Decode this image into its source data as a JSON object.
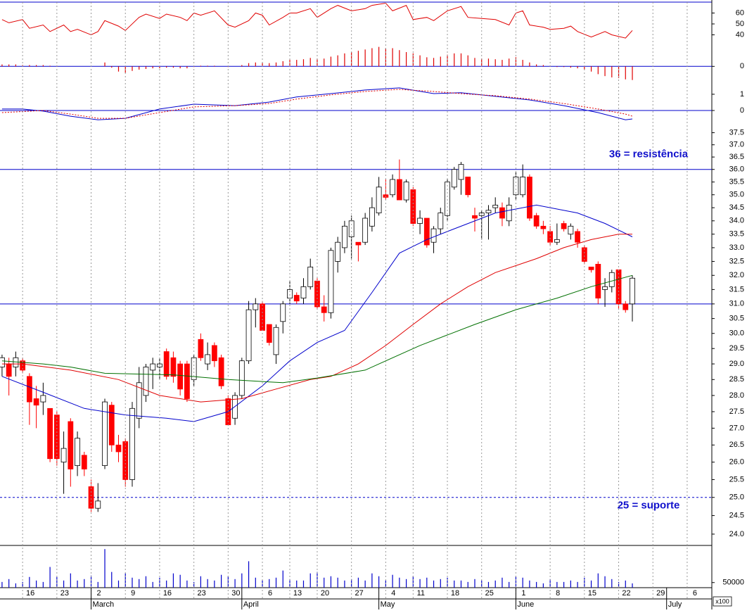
{
  "chart_data": [
    {
      "type": "line",
      "ylim": [
        34.5,
        70
      ],
      "yticks": [
        40,
        50,
        60
      ],
      "xlim": [
        -0.3,
        103.6
      ],
      "series": [
        {
          "color": "#e00000",
          "x": [
            0,
            1,
            3,
            4,
            6,
            7,
            9,
            10,
            11,
            13,
            14,
            15,
            17,
            18,
            20,
            21,
            23,
            24,
            26,
            27,
            28,
            29,
            31,
            33,
            34,
            36,
            37,
            38,
            39,
            41,
            42,
            43,
            45,
            46,
            48,
            49,
            51,
            53,
            54,
            56,
            57,
            59,
            60,
            62,
            63,
            65,
            67,
            68,
            70,
            72,
            74,
            75,
            76,
            77,
            79,
            80,
            82,
            83,
            84,
            86,
            88,
            89,
            91,
            92
          ],
          "values": [
            54,
            51,
            54,
            46,
            49,
            43,
            49,
            43,
            45,
            40,
            43,
            53,
            48,
            44,
            56,
            59,
            55,
            59,
            56,
            53,
            60,
            58,
            62,
            49,
            47,
            53,
            60,
            58,
            49,
            56,
            60,
            60,
            64,
            56,
            64,
            67,
            62,
            64,
            67,
            69,
            62,
            67,
            54,
            56,
            53,
            62,
            66,
            56,
            55,
            54,
            49,
            60,
            62,
            49,
            47,
            45,
            46,
            48,
            43,
            38,
            43,
            40,
            37,
            44
          ]
        }
      ]
    },
    {
      "type": "bar",
      "ylim": [
        -0.3,
        0.35
      ],
      "yticks": [
        0
      ],
      "xlim": [
        -0.3,
        103.6
      ],
      "color": "#e00000",
      "hlines": [
        {
          "value": 0,
          "color": "#0000cc",
          "style": "solid"
        }
      ],
      "values": [
        0.03,
        0.03,
        0.03,
        0.02,
        0.02,
        0.02,
        0.02,
        0.01,
        0.01,
        0,
        0,
        0,
        0,
        0,
        0,
        0.06,
        -0.02,
        -0.08,
        -0.1,
        -0.07,
        -0.05,
        -0.04,
        -0.03,
        -0.03,
        -0.02,
        -0.02,
        -0.03,
        -0.03,
        -0.01,
        0.01,
        0.01,
        0.01,
        0,
        -0.01,
        0,
        0.02,
        0.05,
        0.06,
        0.06,
        0.05,
        0.06,
        0.08,
        0.1,
        0.1,
        0.11,
        0.13,
        0.12,
        0.12,
        0.15,
        0.17,
        0.2,
        0.22,
        0.24,
        0.26,
        0.28,
        0.3,
        0.28,
        0.28,
        0.25,
        0.22,
        0.2,
        0.17,
        0.14,
        0.13,
        0.15,
        0.18,
        0.2,
        0.2,
        0.17,
        0.13,
        0.12,
        0.12,
        0.11,
        0.1,
        0.12,
        0.14,
        0.1,
        0.06,
        0.03,
        0.02,
        0.01,
        -0.01,
        -0.01,
        -0.02,
        -0.03,
        -0.05,
        -0.08,
        -0.12,
        -0.15,
        -0.17,
        -0.18,
        -0.2,
        -0.21
      ]
    },
    {
      "type": "line",
      "ylim": [
        -0.65,
        1.43
      ],
      "yticks": [
        0,
        1
      ],
      "xlim": [
        -0.3,
        103.6
      ],
      "hlines": [
        {
          "value": 0,
          "color": "#0000cc",
          "style": "solid"
        }
      ],
      "series": [
        {
          "color": "#0000cc",
          "x": [
            0,
            3,
            6,
            10,
            14,
            18,
            23,
            28,
            34,
            39,
            43,
            48,
            53,
            58,
            63,
            67,
            72,
            77,
            82,
            87,
            91,
            92
          ],
          "values": [
            0.09,
            0.09,
            -0.04,
            -0.35,
            -0.57,
            -0.48,
            0.09,
            0.39,
            0.3,
            0.52,
            0.83,
            1.04,
            1.26,
            1.39,
            1.04,
            1.09,
            0.87,
            0.65,
            0.3,
            -0.13,
            -0.57,
            -0.52
          ]
        },
        {
          "color": "#e00000",
          "style": "dashed",
          "x": [
            0,
            6,
            10,
            14,
            18,
            23,
            28,
            34,
            39,
            43,
            48,
            53,
            58,
            63,
            67,
            72,
            77,
            82,
            87,
            91,
            92
          ],
          "values": [
            -0.13,
            0,
            -0.22,
            -0.48,
            -0.48,
            -0.13,
            0.22,
            0.3,
            0.43,
            0.7,
            0.96,
            1.17,
            1.3,
            1.17,
            1.04,
            0.91,
            0.7,
            0.43,
            0.09,
            -0.22,
            -0.35
          ]
        }
      ]
    },
    {
      "type": "candlestick",
      "log_scale": true,
      "ylim": [
        23.7,
        37.9
      ],
      "xlim": [
        -0.3,
        103.6
      ],
      "yticks": [
        37.5,
        {
          "value": 37,
          "label": "37.0"
        },
        36.5,
        {
          "value": 36,
          "label": "36.0"
        },
        35.5,
        {
          "value": 35,
          "label": "35.0"
        },
        34.5,
        {
          "value": 34,
          "label": "34.0"
        },
        33.5,
        {
          "value": 33,
          "label": "33.0"
        },
        32.5,
        {
          "value": 32,
          "label": "32.0"
        },
        31.5,
        {
          "value": 31,
          "label": "31.0"
        },
        30.5,
        {
          "value": 30,
          "label": "30.0"
        },
        29.5,
        {
          "value": 29,
          "label": "29.0"
        },
        28.5,
        {
          "value": 28,
          "label": "28.0"
        },
        27.5,
        {
          "value": 27,
          "label": "27.0"
        },
        26.5,
        {
          "value": 26,
          "label": "26.0"
        },
        25.5,
        {
          "value": 25,
          "label": "25.0"
        },
        24.5,
        {
          "value": 24,
          "label": "24.0"
        }
      ],
      "up_color": "#ffffff",
      "down_color": "#ff0000",
      "open": [
        28.9,
        29.0,
        28.9,
        29.1,
        28.6,
        27.9,
        27.8,
        27.6,
        27.4,
        26.0,
        27.2,
        25.9,
        26.2,
        25.3,
        24.7,
        25.9,
        27.7,
        26.5,
        26.6,
        25.5,
        27.3,
        28.0,
        28.8,
        28.9,
        29.4,
        29.2,
        29.0,
        29.0,
        28.5,
        29.8,
        29.0,
        29.6,
        29.2,
        27.9,
        27.3,
        28.0,
        29.1,
        30.8,
        31.0,
        30.3,
        29.3,
        30.4,
        31.2,
        31.3,
        31.2,
        31.6,
        31.8,
        30.9,
        30.7,
        32.5,
        33.0,
        33.4,
        33.2,
        33.2,
        33.8,
        34.3,
        35.0,
        35.0,
        35.6,
        34.8,
        35.2,
        33.9,
        34.1,
        33.2,
        33.7,
        34.2,
        35.3,
        35.6,
        35.7,
        34.2,
        34.2,
        34.3,
        34.5,
        34.5,
        34.0,
        35.0,
        35.0,
        35.7,
        34.2,
        33.8,
        33.6,
        33.2,
        33.9,
        33.5,
        33.6,
        33.0,
        32.3,
        32.4,
        31.5,
        31.6,
        32.2,
        31.0,
        31.0
      ],
      "high": [
        29.3,
        29.2,
        29.4,
        29.2,
        28.7,
        28.3,
        28.4,
        27.6,
        27.5,
        26.9,
        27.3,
        26.9,
        26.3,
        25.5,
        25.4,
        27.9,
        27.8,
        26.8,
        26.7,
        27.8,
        28.9,
        29.0,
        29.2,
        29.2,
        29.5,
        29.4,
        29.1,
        29.1,
        29.3,
        30.0,
        29.7,
        29.7,
        29.3,
        28.0,
        28.1,
        29.2,
        31.1,
        31.2,
        31.1,
        30.3,
        30.3,
        31.1,
        31.8,
        31.4,
        31.9,
        32.6,
        31.9,
        31.3,
        33.0,
        33.4,
        34.0,
        34.2,
        33.2,
        34.3,
        34.9,
        35.7,
        35.6,
        35.8,
        36.4,
        35.6,
        35.3,
        34.4,
        34.1,
        33.8,
        34.5,
        35.6,
        36.1,
        36.3,
        35.7,
        34.5,
        34.4,
        34.6,
        34.9,
        34.7,
        34.9,
        35.9,
        36.2,
        35.8,
        34.3,
        34.0,
        33.8,
        33.9,
        34.0,
        33.9,
        33.7,
        33.1,
        32.3,
        32.5,
        31.9,
        32.2,
        32.2,
        31.1,
        32.0
      ],
      "low": [
        28.6,
        28.0,
        28.6,
        28.7,
        27.1,
        27.0,
        27.4,
        26.0,
        25.9,
        25.1,
        25.3,
        25.6,
        25.6,
        24.6,
        24.6,
        25.8,
        26.3,
        26.0,
        25.3,
        25.3,
        27.0,
        27.8,
        28.2,
        28.5,
        28.5,
        28.4,
        28.0,
        27.8,
        28.3,
        29.1,
        28.8,
        28.9,
        28.2,
        27.1,
        27.1,
        27.9,
        29.0,
        30.2,
        30.1,
        29.6,
        29.0,
        30.0,
        31.0,
        31.0,
        31.0,
        31.5,
        30.8,
        30.4,
        30.5,
        32.1,
        32.8,
        32.6,
        32.5,
        33.1,
        33.6,
        34.2,
        34.8,
        34.9,
        34.8,
        34.7,
        33.8,
        33.5,
        33.0,
        32.8,
        33.5,
        34.0,
        35.2,
        35.0,
        34.9,
        33.6,
        33.3,
        33.3,
        34.3,
        33.8,
        33.8,
        34.8,
        34.9,
        34.0,
        33.7,
        33.5,
        33.1,
        33.1,
        33.6,
        33.3,
        33.0,
        32.4,
        32.1,
        31.0,
        30.9,
        31.4,
        30.8,
        30.7,
        30.4
      ],
      "close": [
        29.2,
        28.6,
        29.2,
        28.8,
        27.8,
        27.7,
        28.0,
        26.1,
        26.1,
        26.4,
        25.8,
        26.7,
        25.8,
        24.7,
        24.9,
        27.8,
        26.5,
        26.3,
        25.5,
        27.6,
        28.4,
        28.9,
        29.0,
        29.0,
        28.6,
        28.6,
        28.2,
        27.9,
        29.2,
        29.2,
        29.3,
        29.1,
        28.3,
        27.1,
        28.0,
        29.1,
        30.8,
        31.0,
        30.1,
        29.7,
        30.2,
        31.0,
        31.5,
        31.1,
        31.6,
        32.3,
        30.9,
        30.7,
        32.9,
        33.2,
        33.8,
        34.0,
        33.1,
        34.1,
        34.5,
        35.3,
        34.9,
        35.6,
        34.8,
        35.5,
        33.9,
        34.1,
        33.1,
        33.7,
        34.3,
        35.5,
        36.0,
        36.2,
        35.0,
        34.1,
        34.3,
        34.4,
        34.6,
        34.1,
        34.6,
        35.7,
        35.7,
        34.1,
        33.8,
        33.7,
        33.2,
        33.3,
        33.7,
        33.8,
        33.2,
        32.5,
        32.2,
        31.2,
        31.6,
        32.1,
        31.0,
        30.8,
        31.9
      ],
      "series": [
        {
          "color": "#0000cc",
          "x": [
            0,
            6,
            12,
            18,
            24,
            28,
            33,
            38,
            42,
            46,
            50,
            54,
            58,
            62,
            66,
            72,
            78,
            84,
            88,
            92
          ],
          "values": [
            28.6,
            28.1,
            27.6,
            27.4,
            27.3,
            27.2,
            27.5,
            28.3,
            29.1,
            29.7,
            30.1,
            31.4,
            32.8,
            33.3,
            33.7,
            34.3,
            34.6,
            34.3,
            33.9,
            33.4
          ]
        },
        {
          "color": "#e00000",
          "x": [
            0,
            3,
            10,
            17,
            23,
            29,
            35,
            40,
            45,
            48,
            52,
            56,
            60,
            64,
            68,
            72,
            78,
            82,
            86,
            90,
            92
          ],
          "values": [
            29.0,
            29.0,
            28.8,
            28.5,
            28.0,
            27.8,
            27.9,
            28.2,
            28.5,
            28.6,
            29.0,
            29.6,
            30.3,
            31.0,
            31.6,
            32.1,
            32.6,
            33.0,
            33.3,
            33.5,
            33.5
          ]
        },
        {
          "color": "#007000",
          "x": [
            0,
            6,
            10,
            15,
            25,
            33,
            41,
            46,
            53,
            61,
            69,
            75,
            81,
            86,
            92
          ],
          "values": [
            29.1,
            29.0,
            28.9,
            28.7,
            28.65,
            28.5,
            28.4,
            28.55,
            28.8,
            29.6,
            30.3,
            30.8,
            31.2,
            31.6,
            32.0
          ]
        }
      ],
      "hlines": [
        {
          "value": 36,
          "color": "#0000cc",
          "style": "solid",
          "label": "36 = resistência",
          "label_position": "above"
        },
        {
          "value": 31,
          "color": "#0000cc",
          "style": "solid"
        },
        {
          "value": 25,
          "color": "#0000cc",
          "style": "dashed",
          "label": "25 = suporte",
          "label_position": "below"
        }
      ]
    },
    {
      "type": "bar",
      "ylim": [
        0,
        400000
      ],
      "yticks": [
        50000
      ],
      "xlim": [
        -0.3,
        103.6
      ],
      "color": "#0000cc",
      "unit_label": "x100",
      "values": [
        56000,
        84000,
        42000,
        56000,
        105000,
        70000,
        56000,
        203000,
        105000,
        70000,
        140000,
        70000,
        84000,
        119000,
        56000,
        378000,
        154000,
        70000,
        140000,
        98000,
        84000,
        112000,
        56000,
        98000,
        70000,
        140000,
        126000,
        70000,
        56000,
        112000,
        84000,
        70000,
        126000,
        112000,
        84000,
        140000,
        259000,
        98000,
        70000,
        84000,
        98000,
        168000,
        84000,
        70000,
        70000,
        140000,
        154000,
        98000,
        112000,
        98000,
        70000,
        84000,
        98000,
        70000,
        140000,
        112000,
        70000,
        126000,
        98000,
        84000,
        112000,
        84000,
        98000,
        70000,
        84000,
        98000,
        70000,
        70000,
        56000,
        84000,
        70000,
        56000,
        70000,
        98000,
        56000,
        112000,
        98000,
        70000,
        56000,
        42000,
        84000,
        56000,
        56000,
        70000,
        56000,
        98000,
        70000,
        140000,
        112000,
        84000,
        56000,
        70000,
        42000
      ],
      "xticks": [
        {
          "value": 3,
          "label": "16"
        },
        {
          "value": 8,
          "label": "23"
        },
        {
          "value": 13,
          "label": "2"
        },
        {
          "value": 18,
          "label": "9"
        },
        {
          "value": 23,
          "label": "16"
        },
        {
          "value": 28,
          "label": "23"
        },
        {
          "value": 33,
          "label": "30"
        },
        {
          "value": 38,
          "label": "6"
        },
        {
          "value": 42,
          "label": "13"
        },
        {
          "value": 46,
          "label": "20"
        },
        {
          "value": 51,
          "label": "27"
        },
        {
          "value": 56,
          "label": "4"
        },
        {
          "value": 60,
          "label": "11"
        },
        {
          "value": 65,
          "label": "18"
        },
        {
          "value": 70,
          "label": "25"
        },
        {
          "value": 75,
          "label": "1"
        },
        {
          "value": 80,
          "label": "8"
        },
        {
          "value": 85,
          "label": "15"
        },
        {
          "value": 90,
          "label": "22"
        },
        {
          "value": 95,
          "label": "29"
        },
        {
          "value": 100,
          "label": "6"
        }
      ],
      "months": [
        {
          "value": 13,
          "label": "March"
        },
        {
          "value": 35,
          "label": "April"
        },
        {
          "value": 55,
          "label": "May"
        },
        {
          "value": 75,
          "label": "June"
        },
        {
          "value": 97,
          "label": "July"
        }
      ]
    }
  ]
}
